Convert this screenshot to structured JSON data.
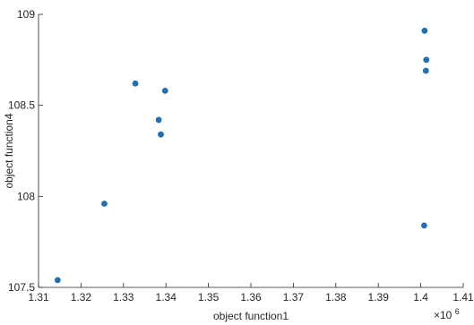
{
  "chart_data": {
    "type": "scatter",
    "xlabel": "object function1",
    "ylabel": "object function4",
    "x_exponent_label": "×10",
    "x_exponent_power": "6",
    "xlim": [
      1.31,
      1.41
    ],
    "ylim": [
      107.5,
      109
    ],
    "x_ticks": [
      "1.31",
      "1.32",
      "1.33",
      "1.34",
      "1.35",
      "1.36",
      "1.37",
      "1.38",
      "1.39",
      "1.4",
      "1.41"
    ],
    "y_ticks": [
      "107.5",
      "108",
      "108.5",
      "109"
    ],
    "grid": false,
    "marker_color": "#1f6fb2",
    "points": [
      {
        "x": 1.3145,
        "y": 107.54
      },
      {
        "x": 1.3255,
        "y": 107.96
      },
      {
        "x": 1.3328,
        "y": 108.62
      },
      {
        "x": 1.3383,
        "y": 108.42
      },
      {
        "x": 1.3388,
        "y": 108.34
      },
      {
        "x": 1.3398,
        "y": 108.58
      },
      {
        "x": 1.4008,
        "y": 107.84
      },
      {
        "x": 1.4009,
        "y": 108.91
      },
      {
        "x": 1.4012,
        "y": 108.69
      },
      {
        "x": 1.4013,
        "y": 108.75
      }
    ]
  }
}
